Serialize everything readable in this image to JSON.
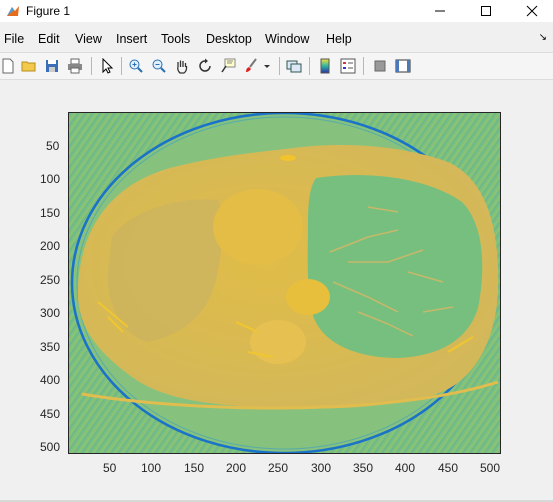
{
  "window": {
    "title": "Figure 1"
  },
  "menu": {
    "items": [
      "File",
      "Edit",
      "View",
      "Insert",
      "Tools",
      "Desktop",
      "Window",
      "Help"
    ]
  },
  "axes": {
    "xticks": [
      "50",
      "100",
      "150",
      "200",
      "250",
      "300",
      "350",
      "400",
      "450",
      "500"
    ],
    "yticks": [
      "50",
      "100",
      "150",
      "200",
      "250",
      "300",
      "350",
      "400",
      "450",
      "500"
    ],
    "xlim": [
      0.5,
      512.5
    ],
    "ylim": [
      0.5,
      512.5
    ]
  },
  "colors": {
    "background_field": "#7dbf7c",
    "body": "#d8b850",
    "ring": "#1a73c8"
  }
}
